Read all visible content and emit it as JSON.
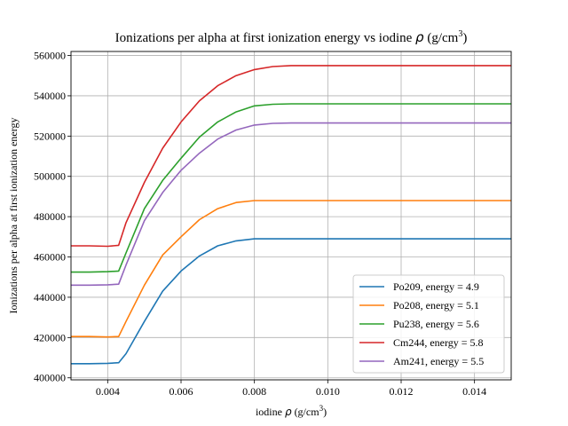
{
  "chart_data": {
    "type": "line",
    "title": {
      "main": "Ionizations per alpha at first ionization energy vs iodine ",
      "rho": "ρ",
      "unit_open": " (g/cm",
      "unit_sup": "3",
      "unit_close": ")"
    },
    "xlabel": {
      "main": "iodine ",
      "rho": "ρ",
      "unit_open": " (g/cm",
      "unit_sup": "3",
      "unit_close": ")"
    },
    "ylabel": "Ionizations per alpha at first ionization energy",
    "xlim": [
      0.003,
      0.015
    ],
    "ylim": [
      399000,
      562000
    ],
    "x_ticks": [
      0.004,
      0.006,
      0.008,
      0.01,
      0.012,
      0.014
    ],
    "x_tick_labels": [
      "0.004",
      "0.006",
      "0.008",
      "0.010",
      "0.012",
      "0.014"
    ],
    "y_ticks": [
      400000,
      420000,
      440000,
      460000,
      480000,
      500000,
      520000,
      540000,
      560000
    ],
    "y_tick_labels": [
      "400000",
      "420000",
      "440000",
      "460000",
      "480000",
      "500000",
      "520000",
      "540000",
      "560000"
    ],
    "grid": true,
    "legend_position": "lower-right",
    "x": [
      0.003,
      0.0035,
      0.004,
      0.0043,
      0.0045,
      0.005,
      0.0055,
      0.006,
      0.0065,
      0.007,
      0.0075,
      0.008,
      0.0085,
      0.009,
      0.015
    ],
    "series": [
      {
        "name": "Po209, energy = 4.9",
        "color": "#1f77b4",
        "values": [
          407000,
          407000,
          407200,
          407500,
          412000,
          428000,
          443000,
          453000,
          460500,
          465500,
          468000,
          469000,
          469000,
          469000,
          469000
        ]
      },
      {
        "name": "Po208, energy = 5.1",
        "color": "#ff7f0e",
        "values": [
          420500,
          420500,
          420300,
          420500,
          428000,
          446000,
          461000,
          470000,
          478500,
          484000,
          487000,
          488000,
          488000,
          488000,
          488000
        ]
      },
      {
        "name": "Pu238, energy = 5.6",
        "color": "#2ca02c",
        "values": [
          452500,
          452500,
          452700,
          453000,
          462000,
          484000,
          498000,
          509000,
          519500,
          527000,
          532000,
          535000,
          535800,
          536000,
          536000
        ]
      },
      {
        "name": "Cm244, energy = 5.8",
        "color": "#d62728",
        "values": [
          465500,
          465500,
          465300,
          465800,
          477000,
          497000,
          514000,
          527000,
          537500,
          545000,
          550000,
          553000,
          554500,
          555000,
          555000
        ]
      },
      {
        "name": "Am241, energy = 5.5",
        "color": "#9467bd",
        "values": [
          446000,
          446000,
          446200,
          446500,
          456000,
          478000,
          492000,
          503000,
          511500,
          518500,
          523000,
          525500,
          526300,
          526500,
          526500
        ]
      }
    ]
  }
}
